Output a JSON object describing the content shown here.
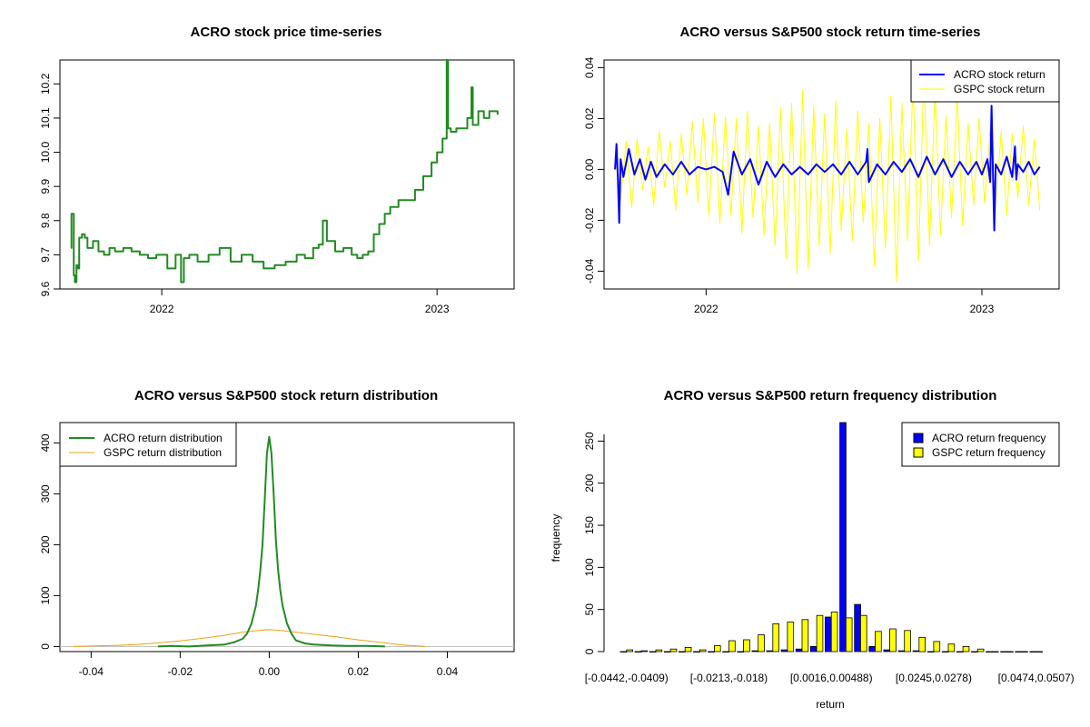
{
  "colors": {
    "acro_green": "#228B22",
    "acro_blue": "#0000FF",
    "gspc_yellow": "#FFFF00",
    "gspc_orange": "#E8A317",
    "axis": "#000000",
    "zero_line": "#BEBEBE"
  },
  "chart_data": [
    {
      "type": "line",
      "title": "ACRO stock price time-series",
      "xlabel": "",
      "ylabel": "",
      "x_range": [
        2021.63,
        2023.28
      ],
      "ylim": [
        9.6,
        10.27
      ],
      "x_ticks": [
        {
          "value": 2022.0,
          "label": "2022"
        },
        {
          "value": 2023.0,
          "label": "2023"
        }
      ],
      "y_ticks": [
        {
          "value": 9.6,
          "label": "9.6"
        },
        {
          "value": 9.7,
          "label": "9.7"
        },
        {
          "value": 9.8,
          "label": "9.8"
        },
        {
          "value": 9.9,
          "label": "9.9"
        },
        {
          "value": 10.0,
          "label": "10.0"
        },
        {
          "value": 10.1,
          "label": "10.1"
        },
        {
          "value": 10.2,
          "label": "10.2"
        }
      ],
      "series": [
        {
          "name": "ACRO price",
          "color": "#228B22",
          "x": [
            2021.67,
            2021.672,
            2021.676,
            2021.68,
            2021.684,
            2021.69,
            2021.694,
            2021.7,
            2021.71,
            2021.72,
            2021.73,
            2021.75,
            2021.77,
            2021.79,
            2021.81,
            2021.83,
            2021.86,
            2021.89,
            2021.92,
            2021.95,
            2021.98,
            2022.02,
            2022.05,
            2022.07,
            2022.08,
            2022.1,
            2022.13,
            2022.17,
            2022.21,
            2022.25,
            2022.29,
            2022.33,
            2022.37,
            2022.41,
            2022.45,
            2022.49,
            2022.52,
            2022.55,
            2022.57,
            2022.585,
            2022.6,
            2022.63,
            2022.66,
            2022.69,
            2022.71,
            2022.73,
            2022.75,
            2022.77,
            2022.79,
            2022.81,
            2022.83,
            2022.86,
            2022.89,
            2022.92,
            2022.95,
            2022.98,
            2023.0,
            2023.02,
            2023.035,
            2023.04,
            2023.05,
            2023.07,
            2023.09,
            2023.11,
            2023.125,
            2023.13,
            2023.15,
            2023.17,
            2023.19,
            2023.21,
            2023.22
          ],
          "y": [
            9.72,
            9.82,
            9.82,
            9.64,
            9.62,
            9.67,
            9.66,
            9.75,
            9.76,
            9.75,
            9.72,
            9.74,
            9.71,
            9.7,
            9.72,
            9.71,
            9.72,
            9.71,
            9.7,
            9.69,
            9.7,
            9.66,
            9.7,
            9.62,
            9.69,
            9.7,
            9.68,
            9.7,
            9.72,
            9.68,
            9.7,
            9.68,
            9.66,
            9.67,
            9.68,
            9.7,
            9.69,
            9.72,
            9.73,
            9.8,
            9.74,
            9.71,
            9.72,
            9.7,
            9.69,
            9.7,
            9.71,
            9.76,
            9.79,
            9.82,
            9.84,
            9.86,
            9.86,
            9.89,
            9.93,
            9.97,
            10.0,
            10.04,
            10.27,
            10.07,
            10.06,
            10.07,
            10.07,
            10.1,
            10.19,
            10.08,
            10.12,
            10.1,
            10.12,
            10.12,
            10.11
          ]
        }
      ]
    },
    {
      "type": "line",
      "title": "ACRO versus S&P500 stock return time-series",
      "xlabel": "",
      "ylabel": "",
      "x_range": [
        2021.63,
        2023.28
      ],
      "ylim": [
        -0.047,
        0.043
      ],
      "x_ticks": [
        {
          "value": 2022.0,
          "label": "2022"
        },
        {
          "value": 2023.0,
          "label": "2023"
        }
      ],
      "y_ticks": [
        {
          "value": -0.04,
          "label": "-0.04"
        },
        {
          "value": -0.02,
          "label": "-0.02"
        },
        {
          "value": 0.0,
          "label": "0.00"
        },
        {
          "value": 0.02,
          "label": "0.02"
        },
        {
          "value": 0.04,
          "label": "0.04"
        }
      ],
      "legend": {
        "position": "top-right",
        "entries": [
          {
            "label": "ACRO stock return",
            "color": "#0000FF"
          },
          {
            "label": "GSPC stock return",
            "color": "#FFFF00"
          }
        ]
      },
      "series": [
        {
          "name": "GSPC stock return",
          "color": "#FFFF00",
          "x": [
            2021.67,
            2021.69,
            2021.71,
            2021.73,
            2021.75,
            2021.77,
            2021.79,
            2021.81,
            2021.83,
            2021.85,
            2021.87,
            2021.89,
            2021.91,
            2021.93,
            2021.95,
            2021.97,
            2021.99,
            2022.01,
            2022.03,
            2022.05,
            2022.07,
            2022.09,
            2022.11,
            2022.13,
            2022.15,
            2022.17,
            2022.19,
            2022.21,
            2022.23,
            2022.25,
            2022.27,
            2022.29,
            2022.31,
            2022.33,
            2022.35,
            2022.37,
            2022.39,
            2022.41,
            2022.43,
            2022.45,
            2022.47,
            2022.49,
            2022.51,
            2022.53,
            2022.55,
            2022.57,
            2022.59,
            2022.61,
            2022.63,
            2022.65,
            2022.67,
            2022.69,
            2022.71,
            2022.73,
            2022.75,
            2022.77,
            2022.79,
            2022.81,
            2022.83,
            2022.85,
            2022.87,
            2022.89,
            2022.91,
            2022.93,
            2022.95,
            2022.97,
            2022.99,
            2023.01,
            2023.03,
            2023.05,
            2023.07,
            2023.09,
            2023.11,
            2023.13,
            2023.15,
            2023.17,
            2023.19,
            2023.21
          ],
          "y": [
            0.005,
            -0.012,
            0.011,
            -0.015,
            0.012,
            -0.008,
            0.009,
            -0.014,
            0.015,
            -0.007,
            0.011,
            -0.016,
            0.014,
            -0.01,
            0.019,
            -0.013,
            0.02,
            -0.018,
            0.022,
            -0.021,
            0.021,
            -0.018,
            0.02,
            -0.025,
            0.023,
            -0.019,
            0.017,
            -0.026,
            0.018,
            -0.03,
            0.024,
            -0.035,
            0.026,
            -0.041,
            0.031,
            -0.039,
            0.025,
            -0.03,
            0.022,
            -0.033,
            0.027,
            -0.024,
            0.016,
            -0.028,
            0.023,
            -0.021,
            0.018,
            -0.038,
            0.02,
            -0.031,
            0.029,
            -0.044,
            0.026,
            -0.028,
            0.034,
            -0.036,
            0.038,
            -0.03,
            0.031,
            -0.026,
            0.021,
            -0.019,
            0.029,
            -0.022,
            0.018,
            -0.014,
            0.02,
            -0.013,
            0.016,
            -0.015,
            0.015,
            -0.018,
            0.014,
            -0.011,
            0.017,
            -0.014,
            0.012,
            -0.016
          ]
        },
        {
          "name": "ACRO stock return",
          "color": "#0000FF",
          "x": [
            2021.67,
            2021.675,
            2021.68,
            2021.685,
            2021.69,
            2021.7,
            2021.72,
            2021.74,
            2021.76,
            2021.78,
            2021.8,
            2021.82,
            2021.85,
            2021.88,
            2021.91,
            2021.94,
            2021.97,
            2022.0,
            2022.03,
            2022.06,
            2022.08,
            2022.1,
            2022.13,
            2022.16,
            2022.19,
            2022.22,
            2022.25,
            2022.28,
            2022.31,
            2022.34,
            2022.37,
            2022.4,
            2022.43,
            2022.46,
            2022.49,
            2022.52,
            2022.55,
            2022.58,
            2022.585,
            2022.59,
            2022.62,
            2022.65,
            2022.68,
            2022.71,
            2022.74,
            2022.77,
            2022.8,
            2022.83,
            2022.86,
            2022.89,
            2022.92,
            2022.95,
            2022.98,
            2023.0,
            2023.02,
            2023.03,
            2023.035,
            2023.04,
            2023.045,
            2023.05,
            2023.07,
            2023.09,
            2023.11,
            2023.12,
            2023.125,
            2023.13,
            2023.15,
            2023.17,
            2023.19,
            2023.21
          ],
          "y": [
            0.0,
            0.01,
            -0.003,
            -0.021,
            0.004,
            -0.003,
            0.008,
            -0.002,
            0.004,
            -0.004,
            0.003,
            -0.003,
            0.002,
            -0.002,
            0.003,
            -0.002,
            0.001,
            0.0,
            0.001,
            -0.001,
            -0.01,
            0.007,
            -0.002,
            0.004,
            -0.006,
            0.003,
            -0.003,
            0.002,
            -0.002,
            0.001,
            -0.002,
            0.002,
            -0.001,
            0.002,
            -0.002,
            0.003,
            -0.002,
            0.003,
            0.008,
            -0.005,
            0.002,
            -0.002,
            0.003,
            -0.001,
            0.004,
            -0.003,
            0.005,
            -0.002,
            0.004,
            -0.003,
            0.003,
            -0.002,
            0.003,
            -0.002,
            0.004,
            -0.005,
            0.025,
            0.0,
            -0.024,
            0.002,
            -0.002,
            0.005,
            -0.003,
            0.009,
            -0.004,
            0.002,
            -0.001,
            0.003,
            -0.002,
            0.001
          ]
        }
      ]
    },
    {
      "type": "line",
      "title": "ACRO versus S&P500 stock return distribution",
      "xlabel": "",
      "ylabel": "",
      "x_range": [
        -0.047,
        0.055
      ],
      "ylim": [
        -10,
        440
      ],
      "x_ticks": [
        {
          "value": -0.04,
          "label": "-0.04"
        },
        {
          "value": -0.02,
          "label": "-0.02"
        },
        {
          "value": 0.0,
          "label": "0.00"
        },
        {
          "value": 0.02,
          "label": "0.02"
        },
        {
          "value": 0.04,
          "label": "0.04"
        }
      ],
      "y_ticks": [
        {
          "value": 0,
          "label": "0"
        },
        {
          "value": 100,
          "label": "100"
        },
        {
          "value": 200,
          "label": "200"
        },
        {
          "value": 300,
          "label": "300"
        },
        {
          "value": 400,
          "label": "400"
        }
      ],
      "legend": {
        "position": "top-left",
        "entries": [
          {
            "label": "ACRO return distribution",
            "color": "#228B22"
          },
          {
            "label": "GSPC return distribution",
            "color": "#E8A317"
          }
        ]
      },
      "series": [
        {
          "name": "ACRO return distribution",
          "color": "#228B22",
          "x": [
            -0.025,
            -0.022,
            -0.018,
            -0.014,
            -0.01,
            -0.008,
            -0.006,
            -0.005,
            -0.004,
            -0.003,
            -0.0025,
            -0.002,
            -0.0015,
            -0.001,
            -0.0005,
            0.0,
            0.0005,
            0.001,
            0.0015,
            0.002,
            0.0025,
            0.003,
            0.004,
            0.005,
            0.006,
            0.008,
            0.01,
            0.014,
            0.018,
            0.022,
            0.026
          ],
          "y": [
            0,
            1,
            0,
            2,
            4,
            8,
            15,
            25,
            45,
            80,
            110,
            150,
            200,
            290,
            380,
            412,
            380,
            300,
            210,
            150,
            110,
            80,
            45,
            25,
            12,
            6,
            4,
            2,
            1,
            1,
            0
          ]
        },
        {
          "name": "GSPC return distribution",
          "color": "#E8A317",
          "x": [
            -0.044,
            -0.035,
            -0.03,
            -0.025,
            -0.02,
            -0.015,
            -0.01,
            -0.006,
            -0.003,
            0.0,
            0.003,
            0.006,
            0.01,
            0.015,
            0.02,
            0.025,
            0.03,
            0.035
          ],
          "y": [
            0,
            2,
            4,
            7,
            11,
            16,
            22,
            28,
            31,
            33,
            31,
            28,
            24,
            19,
            13,
            8,
            3,
            0
          ]
        }
      ]
    },
    {
      "type": "bar",
      "title": "ACRO versus S&P500 return frequency distribution",
      "xlabel": "return",
      "ylabel": "frequency",
      "ylim": [
        0,
        272
      ],
      "y_ticks": [
        {
          "value": 0,
          "label": "0"
        },
        {
          "value": 50,
          "label": "50"
        },
        {
          "value": 100,
          "label": "100"
        },
        {
          "value": 150,
          "label": "150"
        },
        {
          "value": 200,
          "label": "200"
        },
        {
          "value": 250,
          "label": "250"
        }
      ],
      "x_tick_labels": [
        {
          "index": 0,
          "label": "[-0.0442,-0.0409)"
        },
        {
          "index": 7,
          "label": "[-0.0213,-0.018)"
        },
        {
          "index": 14,
          "label": "[0.0016,0.00488)"
        },
        {
          "index": 21,
          "label": "[0.0245,0.0278)"
        },
        {
          "index": 28,
          "label": "[0.0474,0.0507)"
        }
      ],
      "category_count": 29,
      "legend": {
        "position": "top-right",
        "entries": [
          {
            "label": "ACRO return frequency",
            "color": "#0000FF"
          },
          {
            "label": "GSPC return frequency",
            "color": "#FFFF00"
          }
        ]
      },
      "series": [
        {
          "name": "ACRO return frequency",
          "color": "#0000FF",
          "values": [
            0,
            0,
            0,
            0,
            0,
            0,
            0,
            0,
            0,
            1,
            1,
            2,
            3,
            6,
            41,
            272,
            56,
            6,
            2,
            1,
            1,
            0,
            0,
            0,
            0,
            0,
            0,
            0,
            0
          ]
        },
        {
          "name": "GSPC return frequency",
          "color": "#FFFF00",
          "values": [
            2,
            1,
            2,
            3,
            5,
            2,
            7,
            13,
            14,
            20,
            33,
            35,
            38,
            43,
            47,
            40,
            43,
            24,
            27,
            25,
            17,
            12,
            9,
            6,
            3,
            0,
            0,
            0,
            0
          ]
        }
      ]
    }
  ]
}
